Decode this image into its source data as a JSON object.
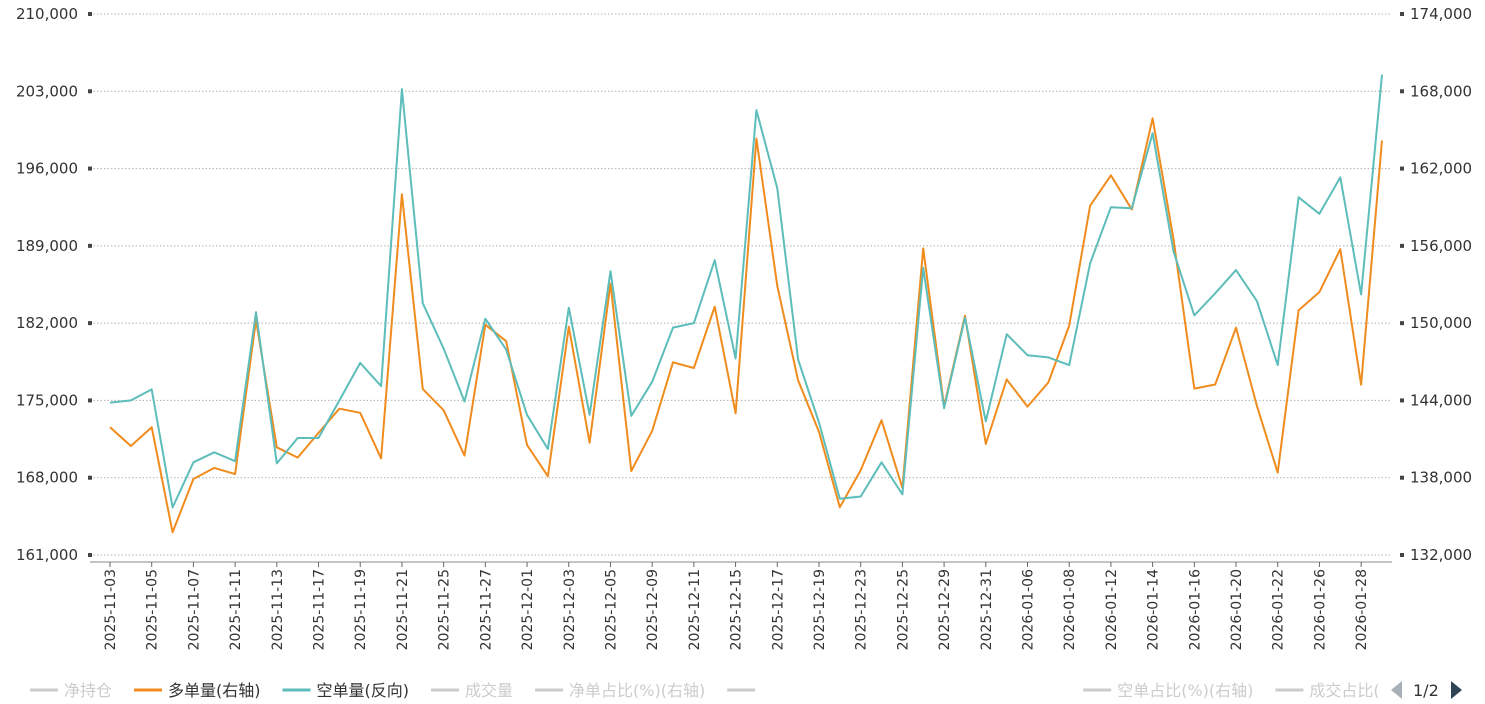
{
  "chart_data": {
    "type": "line",
    "x": [
      "2025-11-03",
      "2025-11-04",
      "2025-11-05",
      "2025-11-06",
      "2025-11-07",
      "2025-11-10",
      "2025-11-11",
      "2025-11-12",
      "2025-11-13",
      "2025-11-14",
      "2025-11-17",
      "2025-11-18",
      "2025-11-19",
      "2025-11-20",
      "2025-11-21",
      "2025-11-24",
      "2025-11-25",
      "2025-11-26",
      "2025-11-27",
      "2025-11-28",
      "2025-12-01",
      "2025-12-02",
      "2025-12-03",
      "2025-12-04",
      "2025-12-05",
      "2025-12-08",
      "2025-12-09",
      "2025-12-10",
      "2025-12-11",
      "2025-12-12",
      "2025-12-15",
      "2025-12-16",
      "2025-12-17",
      "2025-12-18",
      "2025-12-19",
      "2025-12-22",
      "2025-12-23",
      "2025-12-24",
      "2025-12-25",
      "2025-12-26",
      "2025-12-29",
      "2025-12-30",
      "2025-12-31",
      "2026-01-05",
      "2026-01-06",
      "2026-01-07",
      "2026-01-08",
      "2026-01-09",
      "2026-01-12",
      "2026-01-13",
      "2026-01-14",
      "2026-01-15",
      "2026-01-16",
      "2026-01-19",
      "2026-01-20",
      "2026-01-21",
      "2026-01-22",
      "2026-01-23",
      "2026-01-26",
      "2026-01-27",
      "2026-01-28",
      "2026-01-29"
    ],
    "x_tick_labels": [
      "2025-11-03",
      "2025-11-05",
      "2025-11-07",
      "2025-11-11",
      "2025-11-13",
      "2025-11-17",
      "2025-11-19",
      "2025-11-21",
      "2025-11-25",
      "2025-11-27",
      "2025-12-01",
      "2025-12-03",
      "2025-12-05",
      "2025-12-09",
      "2025-12-11",
      "2025-12-15",
      "2025-12-17",
      "2025-12-19",
      "2025-12-23",
      "2025-12-25",
      "2025-12-29",
      "2025-12-31",
      "2026-01-06",
      "2026-01-08",
      "2026-01-12",
      "2026-01-14",
      "2026-01-16",
      "2026-01-20",
      "2026-01-22",
      "2026-01-26",
      "2026-01-28"
    ],
    "y_left": {
      "ylim": [
        161000,
        210000
      ],
      "ticks": [
        "161,000",
        "168,000",
        "175,000",
        "182,000",
        "189,000",
        "196,000",
        "203,000",
        "210,000"
      ],
      "tick_values": [
        161000,
        168000,
        175000,
        182000,
        189000,
        196000,
        203000,
        210000
      ]
    },
    "y_right": {
      "ylim": [
        132000,
        174000
      ],
      "ticks": [
        "132,000",
        "138,000",
        "144,000",
        "150,000",
        "156,000",
        "162,000",
        "168,000",
        "174,000"
      ],
      "tick_values": [
        132000,
        138000,
        144000,
        150000,
        156000,
        162000,
        168000,
        174000
      ]
    },
    "series": [
      {
        "name": "多单量(右轴)",
        "axis": "right",
        "color": "#F08C1E",
        "values": [
          141920,
          140460,
          141920,
          133760,
          137900,
          138760,
          138280,
          150240,
          140360,
          139560,
          141480,
          143360,
          143040,
          139500,
          160000,
          144880,
          143240,
          139720,
          149880,
          148600,
          140550,
          138120,
          149720,
          140720,
          153080,
          138520,
          141640,
          146960,
          146520,
          151280,
          143000,
          164330,
          152880,
          145560,
          141560,
          135710,
          138580,
          142460,
          137210,
          155800,
          143550,
          150580,
          140620,
          145630,
          143520,
          145400,
          149810,
          159110,
          161480,
          158820,
          165900,
          156520,
          144920,
          145240,
          149650,
          143580,
          138400,
          151000,
          152410,
          155740,
          145220,
          164190
        ]
      },
      {
        "name": "空单量(反向)",
        "axis": "left",
        "color": "#5DBDBA",
        "values": [
          174800,
          175000,
          176000,
          165300,
          169400,
          170300,
          169500,
          183000,
          169300,
          171600,
          171600,
          175000,
          178400,
          176300,
          203200,
          183800,
          179700,
          174900,
          182400,
          179600,
          173700,
          170600,
          183400,
          173700,
          186700,
          173600,
          176700,
          181600,
          182000,
          187700,
          178800,
          201300,
          194200,
          178700,
          173000,
          166100,
          166300,
          169400,
          166500,
          187000,
          174300,
          182500,
          173100,
          181000,
          179100,
          178900,
          178200,
          187400,
          192500,
          192400,
          199200,
          188500,
          182700,
          184700,
          186800,
          184000,
          178200,
          193400,
          191900,
          195200,
          184600,
          204500
        ]
      }
    ],
    "legend": {
      "placement": "bottom",
      "page": "1/2",
      "items": [
        {
          "label": "净持仓",
          "active": false,
          "color": "#cccccc"
        },
        {
          "label": "多单量(右轴)",
          "active": true,
          "color": "#F08C1E"
        },
        {
          "label": "空单量(反向)",
          "active": true,
          "color": "#5DBDBA"
        },
        {
          "label": "成交量",
          "active": false,
          "color": "#cccccc"
        },
        {
          "label": "净单占比(%)(右轴)",
          "active": false,
          "color": "#cccccc"
        },
        {
          "label": "",
          "active": false,
          "color": "#cccccc"
        },
        {
          "label": "空单占比(%)(右轴)",
          "active": false,
          "color": "#cccccc"
        },
        {
          "label": "成交占比(%)(右轴)",
          "active": false,
          "color": "#cccccc"
        }
      ]
    },
    "grid": true
  }
}
